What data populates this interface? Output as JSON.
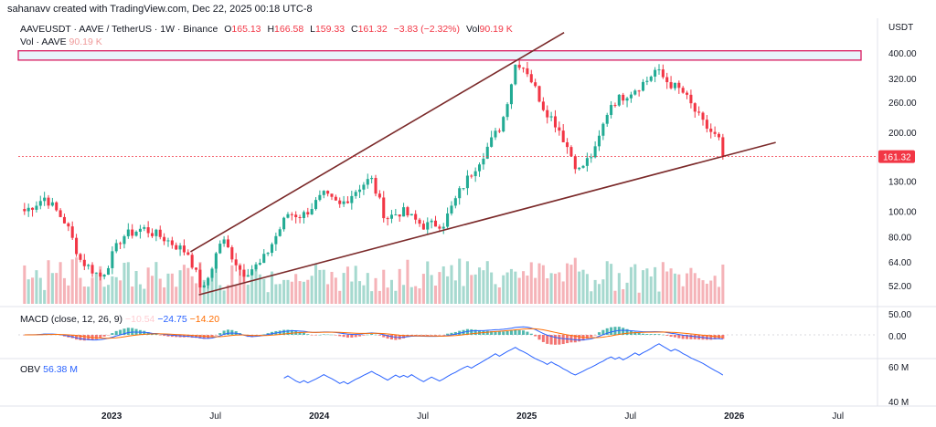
{
  "watermark": "sahanavv created with TradingView.com, Dec 22, 2025 00:18 UTC-8",
  "legend": {
    "symbol": "AAVEUSDT · AAVE / TetherUS · 1W · Binance",
    "o_label": "O",
    "o_value": "165.13",
    "h_label": "H",
    "h_value": "166.58",
    "l_label": "L",
    "l_value": "159.33",
    "c_label": "C",
    "c_value": "161.32",
    "change": "−3.83 (−2.32%)",
    "vol_label": "Vol",
    "vol_value": "90.19 K"
  },
  "vol_legend": {
    "label": "Vol · AAVE",
    "value": "90.19 K"
  },
  "macd_legend": {
    "label": "MACD (close, 12, 26, 9)",
    "hist": "−10.54",
    "macd": "−24.75",
    "signal": "−14.20"
  },
  "obv_legend": {
    "label": "OBV",
    "value": "56.38 M"
  },
  "colors": {
    "up": "#22ab94",
    "down": "#f23645",
    "trend": "#7b2a2a",
    "zone_border": "#d81b60",
    "zone_fill": "#d6eaf8",
    "macd": "#2962ff",
    "signal": "#ff6d00",
    "obv": "#2962ff"
  },
  "chart_data": {
    "type": "candlestick",
    "title": "AAVEUSDT · AAVE / TetherUS · 1W · Binance",
    "currency": "USDT",
    "last_price": "161.32",
    "y_axis_scale": "log",
    "y_ticks": [
      "400.00",
      "320.00",
      "260.00",
      "200.00",
      "130.00",
      "100.00",
      "80.00",
      "64.00",
      "52.00"
    ],
    "y_ticks_values": [
      400,
      320,
      260,
      200,
      130,
      100,
      80,
      64,
      52
    ],
    "x_ticks": [
      "2023",
      "Jul",
      "2024",
      "Jul",
      "2025",
      "Jul",
      "2026",
      "Jul"
    ],
    "x_ticks_t": [
      2023.0,
      2023.5,
      2024.0,
      2024.5,
      2025.0,
      2025.5,
      2026.0,
      2026.5
    ],
    "x_range": [
      2022.55,
      2026.62
    ],
    "y_range": [
      44,
      470
    ],
    "resistance_zone": [
      376,
      408
    ],
    "trendlines": [
      {
        "name": "upper",
        "start": [
          2023.38,
          70
        ],
        "end": [
          2025.03,
          408
        ],
        "extend_to": 2025.18
      },
      {
        "name": "lower",
        "start": [
          2023.42,
          48
        ],
        "end": [
          2025.95,
          162
        ],
        "extend_to": 2026.2
      }
    ],
    "anchors": [
      [
        2022.58,
        100
      ],
      [
        2022.68,
        113
      ],
      [
        2022.78,
        90
      ],
      [
        2022.85,
        65
      ],
      [
        2022.95,
        56
      ],
      [
        2023.05,
        80
      ],
      [
        2023.15,
        86
      ],
      [
        2023.25,
        79
      ],
      [
        2023.37,
        69
      ],
      [
        2023.44,
        49
      ],
      [
        2023.53,
        79
      ],
      [
        2023.63,
        58
      ],
      [
        2023.72,
        63
      ],
      [
        2023.85,
        98
      ],
      [
        2023.92,
        96
      ],
      [
        2024.02,
        115
      ],
      [
        2024.1,
        105
      ],
      [
        2024.2,
        125
      ],
      [
        2024.25,
        133
      ],
      [
        2024.32,
        94
      ],
      [
        2024.4,
        100
      ],
      [
        2024.5,
        88
      ],
      [
        2024.6,
        90
      ],
      [
        2024.68,
        120
      ],
      [
        2024.78,
        160
      ],
      [
        2024.88,
        215
      ],
      [
        2024.95,
        375
      ],
      [
        2025.0,
        345
      ],
      [
        2025.08,
        250
      ],
      [
        2025.15,
        210
      ],
      [
        2025.25,
        142
      ],
      [
        2025.33,
        170
      ],
      [
        2025.4,
        255
      ],
      [
        2025.5,
        285
      ],
      [
        2025.58,
        315
      ],
      [
        2025.62,
        345
      ],
      [
        2025.68,
        310
      ],
      [
        2025.75,
        285
      ],
      [
        2025.85,
        215
      ],
      [
        2025.93,
        185
      ],
      [
        2025.96,
        161
      ]
    ],
    "volume_max_k": 300,
    "macd": {
      "hist": -10.54,
      "macd": -24.75,
      "signal": -14.2,
      "y_ticks": [
        "50.00",
        "0.00"
      ]
    },
    "obv": {
      "value_m": 56.38,
      "y_ticks": [
        "60 M",
        "40 M"
      ]
    }
  }
}
